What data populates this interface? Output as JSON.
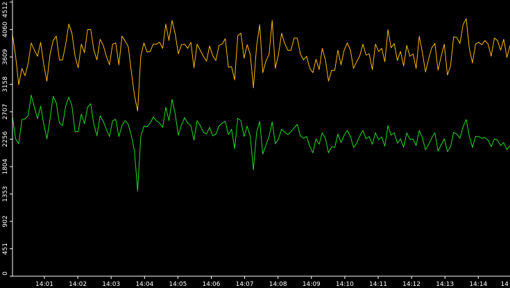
{
  "chart_data": {
    "type": "line",
    "title": "",
    "xlabel": "",
    "ylabel": "",
    "ylim": [
      0,
      4512
    ],
    "yticks": [
      0,
      451,
      902,
      1353,
      1804,
      2256,
      2707,
      3158,
      3609,
      4060,
      4512
    ],
    "xticks": [
      "14:01",
      "14:02",
      "14:03",
      "14:04",
      "14:05",
      "14:06",
      "14:07",
      "14:08",
      "14:09",
      "14:10",
      "14:11",
      "14:12",
      "14:13",
      "14:14",
      "14"
    ],
    "grid": true,
    "legend": "none",
    "series": [
      {
        "color": "#ffbb00",
        "values": [
          3980,
          3620,
          3150,
          3420,
          3300,
          3500,
          3840,
          3720,
          3620,
          3850,
          3480,
          3210,
          3650,
          3880,
          3950,
          3560,
          3560,
          3820,
          4150,
          4000,
          3620,
          3430,
          3820,
          3680,
          4060,
          4060,
          3720,
          3560,
          3900,
          3800,
          3620,
          3480,
          3820,
          3840,
          3480,
          3950,
          3870,
          3780,
          3360,
          2970,
          2720,
          3620,
          3840,
          3690,
          3700,
          3820,
          3820,
          3850,
          3750,
          4150,
          3880,
          4210,
          3990,
          3660,
          3810,
          3820,
          3750,
          3850,
          3430,
          3820,
          3720,
          3620,
          3540,
          3790,
          3630,
          3550,
          3800,
          3820,
          3910,
          3440,
          3450,
          3230,
          3960,
          4000,
          3590,
          3810,
          3650,
          3100,
          3780,
          4140,
          3350,
          3540,
          3650,
          4210,
          3420,
          3650,
          4000,
          3830,
          3720,
          3720,
          3920,
          3920,
          3660,
          3560,
          3620,
          3420,
          3350,
          3570,
          3400,
          3750,
          3560,
          3210,
          3390,
          3390,
          3720,
          3480,
          3720,
          3840,
          3720,
          3420,
          3530,
          3630,
          3820,
          3640,
          3660,
          3400,
          3820,
          3700,
          3750,
          3530,
          4060,
          3760,
          3830,
          3550,
          3700,
          3460,
          3800,
          3620,
          3660,
          3420,
          3950,
          3680,
          3360,
          3580,
          3760,
          3830,
          3390,
          3620,
          3820,
          3310,
          3460,
          3940,
          3930,
          3830,
          4140,
          4240,
          3750,
          3510,
          3820,
          3850,
          3810,
          3880,
          3820,
          3620,
          3920,
          3880,
          3720,
          3900,
          3600,
          3800
        ]
      },
      {
        "color": "#22dd22",
        "values": [
          2620,
          2260,
          2180,
          2580,
          2590,
          2640,
          2980,
          2780,
          2590,
          2800,
          2500,
          2260,
          2590,
          2960,
          2850,
          2520,
          2480,
          2800,
          2950,
          2800,
          2380,
          2380,
          2670,
          2510,
          2780,
          2840,
          2500,
          2310,
          2640,
          2550,
          2420,
          2300,
          2560,
          2580,
          2300,
          2480,
          2560,
          2500,
          2310,
          2050,
          1400,
          2300,
          2470,
          2460,
          2520,
          2620,
          2560,
          2520,
          2450,
          2780,
          2560,
          2910,
          2670,
          2320,
          2490,
          2610,
          2520,
          2480,
          2240,
          2560,
          2480,
          2370,
          2340,
          2450,
          2310,
          2340,
          2470,
          2520,
          2550,
          2330,
          2420,
          2100,
          2600,
          2560,
          2300,
          2470,
          2300,
          1750,
          2360,
          2550,
          2010,
          2160,
          2300,
          2540,
          2180,
          2260,
          2420,
          2370,
          2330,
          2380,
          2440,
          2500,
          2310,
          2270,
          2300,
          2140,
          2030,
          2260,
          2170,
          2360,
          2270,
          2030,
          2130,
          2120,
          2340,
          2200,
          2320,
          2400,
          2300,
          2120,
          2190,
          2310,
          2400,
          2260,
          2300,
          2170,
          2360,
          2250,
          2290,
          2140,
          2480,
          2320,
          2360,
          2190,
          2260,
          2120,
          2360,
          2250,
          2260,
          2150,
          2400,
          2280,
          2080,
          2170,
          2280,
          2360,
          2060,
          2160,
          2260,
          2050,
          2130,
          2370,
          2340,
          2270,
          2460,
          2580,
          2300,
          2120,
          2300,
          2300,
          2270,
          2280,
          2240,
          2130,
          2260,
          2240,
          2150,
          2200,
          2080,
          2150
        ]
      }
    ]
  }
}
